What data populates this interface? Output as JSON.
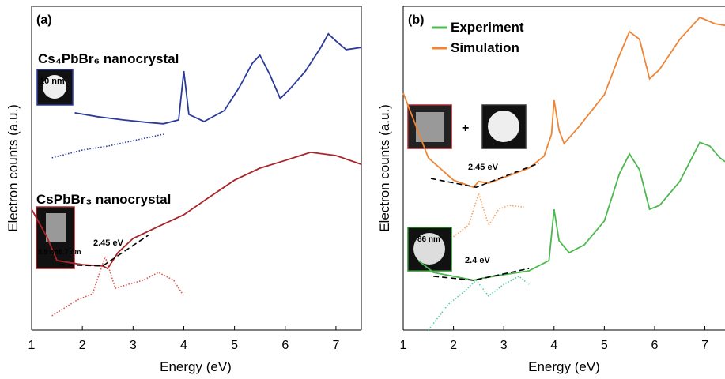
{
  "chart_data": [
    {
      "type": "line",
      "panel_label": "(a)",
      "xlabel": "Energy (eV)",
      "ylabel": "Electron counts (a.u.)",
      "xlim": [
        1,
        7.5
      ],
      "ylim": [
        0,
        100
      ],
      "xticks": [
        1,
        2,
        3,
        4,
        5,
        6,
        7
      ],
      "annotations": [
        "Cs₄PbBr₆ nanocrystal",
        "CsPbBr₃ nanocrystal",
        "2.45 eV",
        "10 nm",
        "8.9 nm",
        "9.7 nm"
      ],
      "series": [
        {
          "color": "#2b3a9a",
          "style": "solid",
          "x": [
            1.85,
            2.3,
            2.8,
            3.3,
            3.6,
            3.9,
            4.0,
            4.1,
            4.4,
            4.8,
            5.1,
            5.35,
            5.5,
            5.7,
            5.9,
            6.1,
            6.4,
            6.7,
            6.85,
            7.0,
            7.2,
            7.5
          ],
          "values": [
            67.1,
            65.9,
            64.9,
            64.1,
            63.7,
            64.9,
            80,
            66.6,
            64.4,
            67.8,
            75.1,
            82.4,
            84.9,
            78.8,
            71.5,
            74.6,
            80,
            87.3,
            91.5,
            89.3,
            86.6,
            87.3
          ]
        },
        {
          "color": "#2b3a9a",
          "style": "dotted",
          "x": [
            1.4,
            2.0,
            2.5,
            3.0,
            3.6
          ],
          "values": [
            53.2,
            55.6,
            56.8,
            58.5,
            60.5
          ]
        },
        {
          "color": "#a8262a",
          "style": "solid",
          "x": [
            1.0,
            1.3,
            1.5,
            2.0,
            2.4,
            2.5,
            2.7,
            3.0,
            3.5,
            4.0,
            4.5,
            5.0,
            5.5,
            6.0,
            6.5,
            7.0,
            7.5
          ],
          "values": [
            37.3,
            28.8,
            21.5,
            20.2,
            19.8,
            19.0,
            23.9,
            28.3,
            32.0,
            35.6,
            41.0,
            46.3,
            50.0,
            52.4,
            54.9,
            53.9,
            51.2
          ]
        },
        {
          "color": "#d9534f",
          "style": "dotted",
          "x": [
            1.4,
            1.9,
            2.2,
            2.45,
            2.65,
            2.9,
            3.2,
            3.5,
            3.8,
            4.0
          ],
          "values": [
            4.4,
            9.3,
            11.2,
            22.7,
            12.9,
            14.1,
            15.4,
            17.8,
            15.4,
            10.5
          ]
        },
        {
          "color": "#000000",
          "style": "dashed",
          "x": [
            1.55,
            2.4,
            3.3
          ],
          "values": [
            20.2,
            19.8,
            29.3
          ]
        }
      ]
    },
    {
      "type": "line",
      "panel_label": "(b)",
      "xlabel": "Energy (eV)",
      "ylabel": "Electron counts (a.u.)",
      "xlim": [
        1,
        7.4
      ],
      "ylim": [
        0,
        100
      ],
      "xticks": [
        1,
        2,
        3,
        4,
        5,
        6,
        7
      ],
      "annotations": [
        "+",
        "2.45 eV",
        "2.4 eV",
        "86 nm"
      ],
      "series": [
        {
          "name": "Experiment",
          "color": "#4db84f",
          "style": "solid",
          "x": [
            1.3,
            1.6,
            2.0,
            2.4,
            2.6,
            3.0,
            3.5,
            3.9,
            4.0,
            4.1,
            4.3,
            4.6,
            5.0,
            5.3,
            5.5,
            5.7,
            5.9,
            6.1,
            6.5,
            6.9,
            7.1,
            7.3,
            7.4
          ],
          "values": [
            21.5,
            17.8,
            16.6,
            15.4,
            16.1,
            17.1,
            18.3,
            21.5,
            37.3,
            27.6,
            23.9,
            26.3,
            33.7,
            48.3,
            54.4,
            49.5,
            37.3,
            38.5,
            45.9,
            58.0,
            56.8,
            53.2,
            52.0
          ]
        },
        {
          "name": "Simulation",
          "color": "#ee8435",
          "style": "solid",
          "x": [
            1.0,
            1.5,
            2.0,
            2.4,
            2.5,
            2.7,
            3.0,
            3.5,
            3.8,
            3.95,
            4.0,
            4.1,
            4.2,
            4.5,
            5.0,
            5.3,
            5.5,
            5.7,
            5.9,
            6.1,
            6.5,
            6.9,
            7.2,
            7.4
          ],
          "values": [
            73.2,
            53.2,
            46.3,
            44.1,
            45.9,
            45.4,
            47.1,
            50.0,
            53.7,
            60.5,
            71.0,
            61.7,
            57.6,
            62.9,
            72.7,
            84.9,
            92.2,
            89.8,
            77.6,
            80.5,
            89.8,
            96.6,
            94.6,
            94.1
          ]
        },
        {
          "color": "#f5a55f",
          "style": "dotted",
          "x": [
            2.0,
            2.3,
            2.5,
            2.7,
            2.9,
            3.1,
            3.4
          ],
          "values": [
            28.8,
            32.4,
            42.2,
            32.4,
            37.3,
            38.5,
            38.0
          ]
        },
        {
          "color": "#5cc9a8",
          "style": "dotted",
          "x": [
            1.5,
            1.9,
            2.2,
            2.45,
            2.7,
            3.0,
            3.3,
            3.5
          ],
          "values": [
            0,
            8.0,
            11.7,
            15.4,
            10.5,
            14.1,
            16.6,
            14.1
          ]
        },
        {
          "color": "#000000",
          "style": "dashed",
          "x": [
            1.55,
            2.45,
            3.7
          ],
          "values": [
            46.8,
            44.1,
            51.5
          ]
        },
        {
          "color": "#000000",
          "style": "dashed",
          "x": [
            1.6,
            2.4,
            3.5
          ],
          "values": [
            16.6,
            15.4,
            19.0
          ]
        }
      ]
    }
  ]
}
